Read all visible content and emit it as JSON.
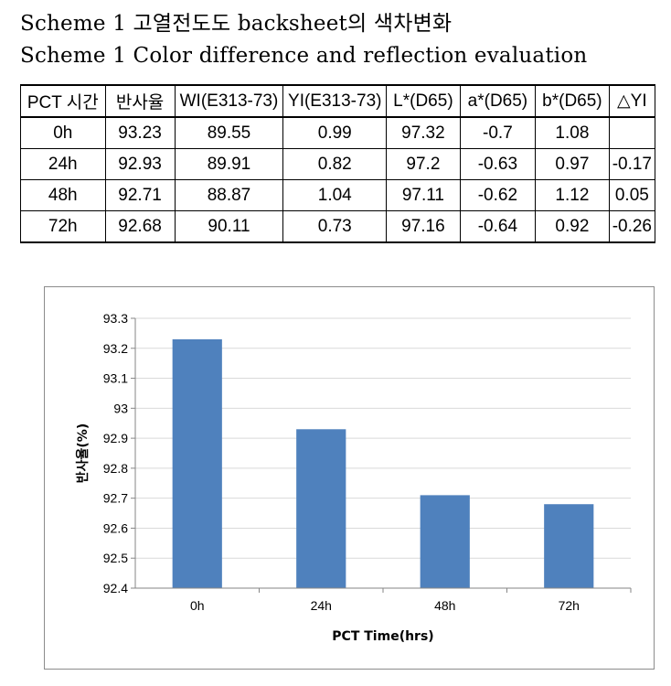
{
  "titles": {
    "line1": "Scheme 1 고열전도도 backsheet의 색차변화",
    "line2": "Scheme 1 Color difference and reflection evaluation"
  },
  "table": {
    "headers": [
      "PCT 시간",
      "반사율",
      "WI(E313-73)",
      "YI(E313-73)",
      "L*(D65)",
      "a*(D65)",
      "b*(D65)",
      "△YI"
    ],
    "rows": [
      [
        "0h",
        "93.23",
        "89.55",
        "0.99",
        "97.32",
        "-0.7",
        "1.08",
        ""
      ],
      [
        "24h",
        "92.93",
        "89.91",
        "0.82",
        "97.2",
        "-0.63",
        "0.97",
        "-0.17"
      ],
      [
        "48h",
        "92.71",
        "88.87",
        "1.04",
        "97.11",
        "-0.62",
        "1.12",
        "0.05"
      ],
      [
        "72h",
        "92.68",
        "90.11",
        "0.73",
        "97.16",
        "-0.64",
        "0.92",
        "-0.26"
      ]
    ]
  },
  "chart_data": {
    "type": "bar",
    "categories": [
      "0h",
      "24h",
      "48h",
      "72h"
    ],
    "values": [
      93.23,
      92.93,
      92.71,
      92.68
    ],
    "xlabel": "PCT Time(hrs)",
    "ylabel": "반사율(%)",
    "ylim": [
      92.4,
      93.3
    ],
    "yticks": [
      "92.4",
      "92.5",
      "92.6",
      "92.7",
      "92.8",
      "92.9",
      "93",
      "93.1",
      "93.2",
      "93.3"
    ],
    "grid": true,
    "bar_color": "#4f81bd",
    "grid_color": "#d9d9d9",
    "legend": false
  }
}
